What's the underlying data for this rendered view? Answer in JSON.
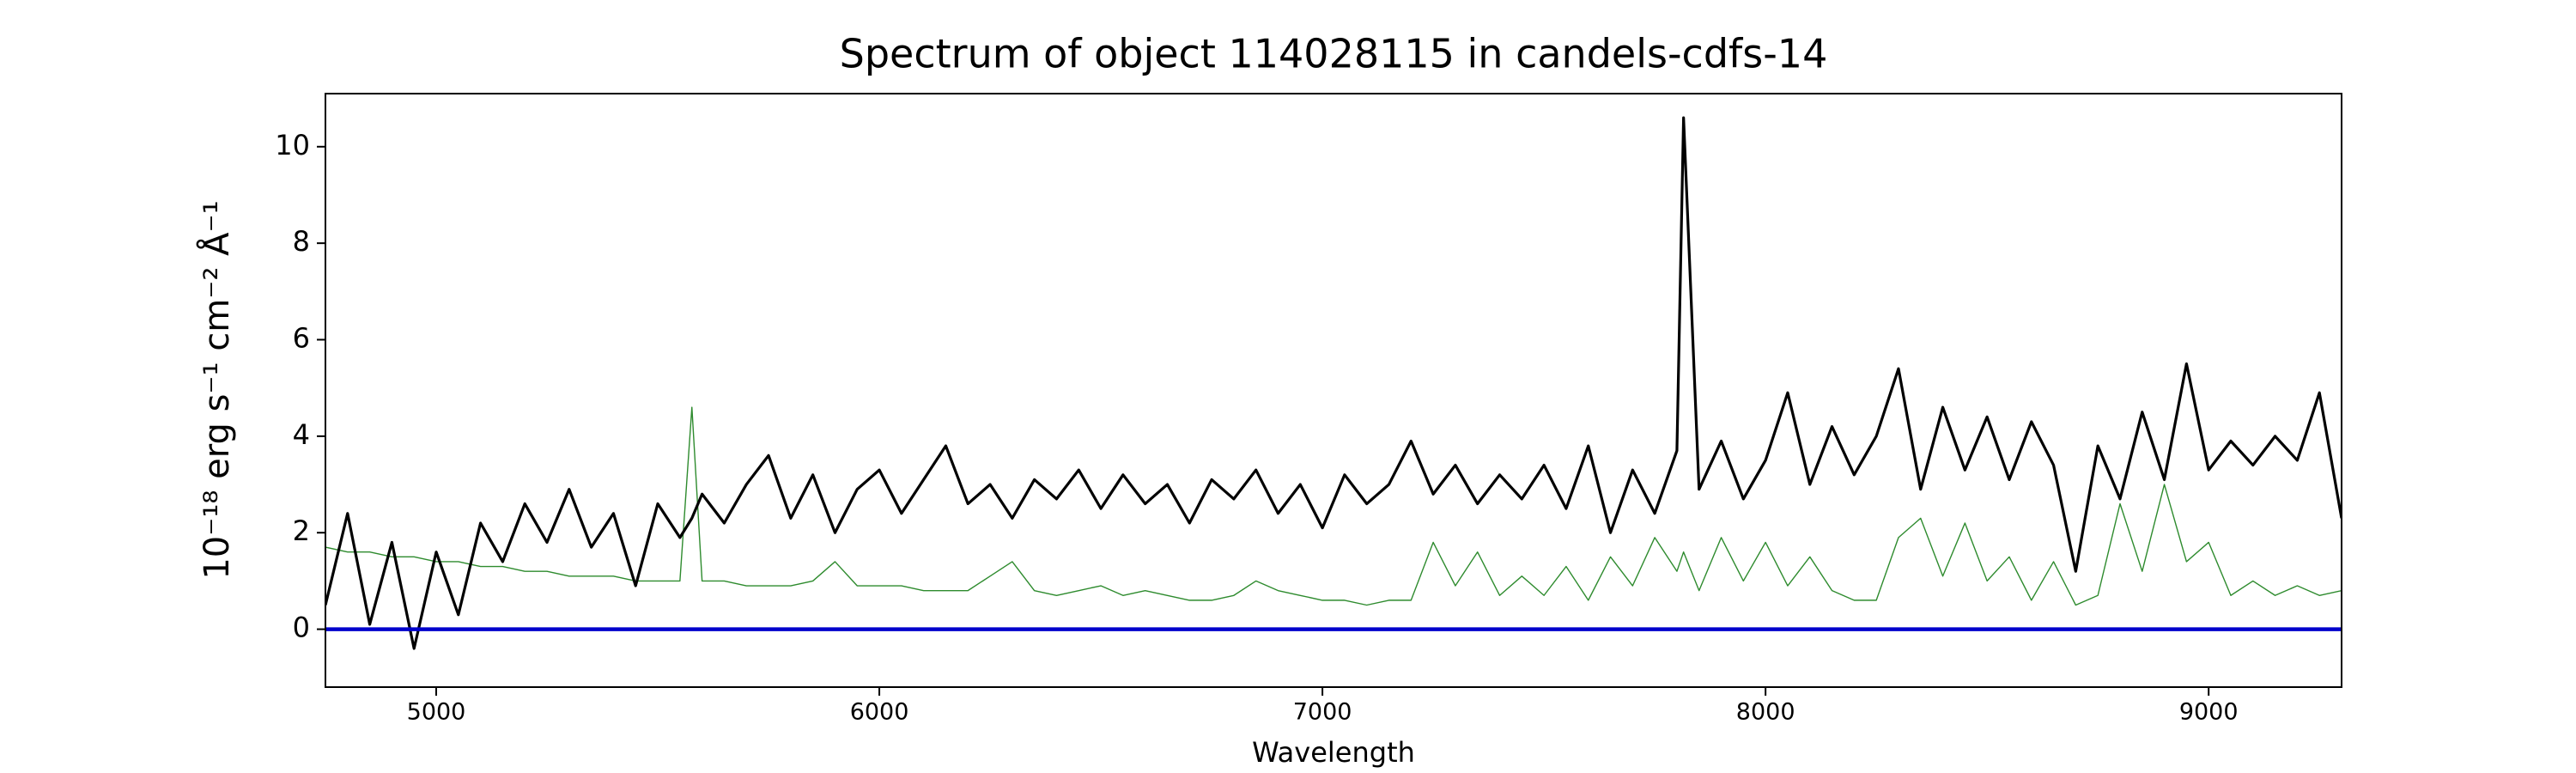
{
  "chart_data": {
    "type": "line",
    "title": "Spectrum of object 114028115 in candels-cdfs-14",
    "x_label": "Wavelength",
    "y_label": "10⁻¹⁸ erg s⁻¹ cm⁻² Å⁻¹",
    "x": [
      4750,
      4800,
      4850,
      4900,
      4950,
      5000,
      5050,
      5100,
      5150,
      5200,
      5250,
      5300,
      5350,
      5400,
      5450,
      5500,
      5550,
      5577,
      5600,
      5650,
      5700,
      5750,
      5800,
      5850,
      5900,
      5950,
      6000,
      6050,
      6100,
      6150,
      6200,
      6250,
      6300,
      6350,
      6400,
      6450,
      6500,
      6550,
      6600,
      6650,
      6700,
      6750,
      6800,
      6850,
      6900,
      6950,
      7000,
      7050,
      7100,
      7150,
      7200,
      7250,
      7300,
      7350,
      7400,
      7450,
      7500,
      7550,
      7600,
      7650,
      7700,
      7750,
      7800,
      7815,
      7850,
      7900,
      7950,
      8000,
      8050,
      8100,
      8150,
      8200,
      8250,
      8300,
      8350,
      8400,
      8450,
      8500,
      8550,
      8600,
      8650,
      8700,
      8750,
      8800,
      8850,
      8900,
      8950,
      9000,
      9050,
      9100,
      9150,
      9200,
      9250,
      9300
    ],
    "series": [
      {
        "color": "#2e8b2e",
        "width": 1.4,
        "values": [
          1.7,
          1.6,
          1.6,
          1.5,
          1.5,
          1.4,
          1.4,
          1.3,
          1.3,
          1.2,
          1.2,
          1.1,
          1.1,
          1.1,
          1.0,
          1.0,
          1.0,
          4.6,
          1.0,
          1.0,
          0.9,
          0.9,
          0.9,
          1.0,
          1.4,
          0.9,
          0.9,
          0.9,
          0.8,
          0.8,
          0.8,
          1.1,
          1.4,
          0.8,
          0.7,
          0.8,
          0.9,
          0.7,
          0.8,
          0.7,
          0.6,
          0.6,
          0.7,
          1.0,
          0.8,
          0.7,
          0.6,
          0.6,
          0.5,
          0.6,
          0.6,
          1.8,
          0.9,
          1.6,
          0.7,
          1.1,
          0.7,
          1.3,
          0.6,
          1.5,
          0.9,
          1.9,
          1.2,
          1.6,
          0.8,
          1.9,
          1.0,
          1.8,
          0.9,
          1.5,
          0.8,
          0.6,
          0.6,
          1.9,
          2.3,
          1.1,
          2.2,
          1.0,
          1.5,
          0.6,
          1.4,
          0.5,
          0.7,
          2.6,
          1.2,
          3.0,
          1.4,
          1.8,
          0.7,
          1.0,
          0.7,
          0.9,
          0.7,
          0.8
        ]
      },
      {
        "color": "#000000",
        "width": 3.2,
        "values": [
          0.5,
          2.4,
          0.1,
          1.8,
          -0.4,
          1.6,
          0.3,
          2.2,
          1.4,
          2.6,
          1.8,
          2.9,
          1.7,
          2.4,
          0.9,
          2.6,
          1.9,
          2.3,
          2.8,
          2.2,
          3.0,
          3.6,
          2.3,
          3.2,
          2.0,
          2.9,
          3.3,
          2.4,
          3.1,
          3.8,
          2.6,
          3.0,
          2.3,
          3.1,
          2.7,
          3.3,
          2.5,
          3.2,
          2.6,
          3.0,
          2.2,
          3.1,
          2.7,
          3.3,
          2.4,
          3.0,
          2.1,
          3.2,
          2.6,
          3.0,
          3.9,
          2.8,
          3.4,
          2.6,
          3.2,
          2.7,
          3.4,
          2.5,
          3.8,
          2.0,
          3.3,
          2.4,
          3.7,
          10.6,
          2.9,
          3.9,
          2.7,
          3.5,
          4.9,
          3.0,
          4.2,
          3.2,
          4.0,
          5.4,
          2.9,
          4.6,
          3.3,
          4.4,
          3.1,
          4.3,
          3.4,
          1.2,
          3.8,
          2.7,
          4.5,
          3.1,
          5.5,
          3.3,
          3.9,
          3.4,
          4.0,
          3.5,
          4.9,
          2.3
        ]
      }
    ],
    "reference_line": {
      "value": 0,
      "color": "#0000cc"
    },
    "xlim": [
      4750,
      9300
    ],
    "ylim": [
      -1.2,
      11.1
    ],
    "xticks": [
      5000,
      6000,
      7000,
      8000,
      9000
    ],
    "yticks": [
      0,
      2,
      4,
      6,
      8,
      10
    ],
    "grid": false
  }
}
